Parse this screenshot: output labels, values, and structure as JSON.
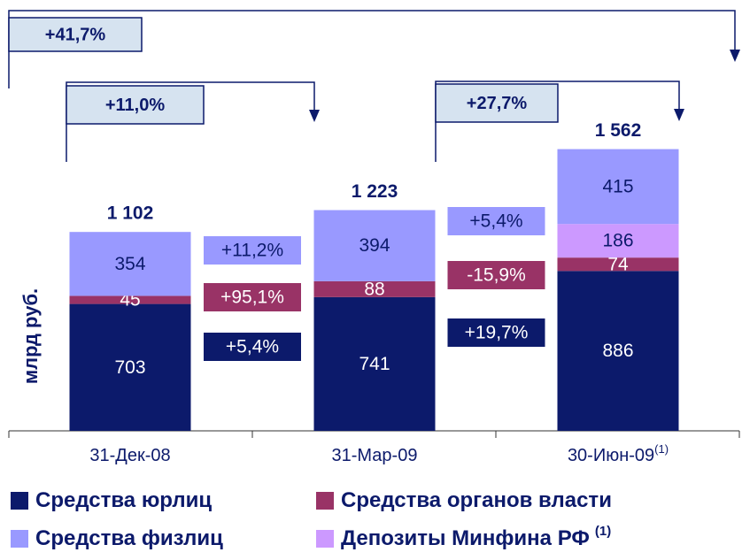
{
  "chart_data": {
    "type": "stacked_bar",
    "y_axis_label": "млрд руб.",
    "categories": [
      "31-Дек-08",
      "31-Мар-09",
      "30-Июн-09"
    ],
    "category_notes": [
      null,
      null,
      "(1)"
    ],
    "ylim": [
      0,
      2000
    ],
    "series": [
      {
        "name": "Средства юрлиц",
        "color": "#0c1a6b",
        "text_color": "#ffffff",
        "values": [
          703,
          741,
          886
        ],
        "changes": [
          5.4,
          19.7
        ],
        "change_labels": [
          "+5,4%",
          "+19,7%"
        ]
      },
      {
        "name": "Средства органов власти",
        "color": "#993366",
        "text_color": "#ffffff",
        "values": [
          45,
          88,
          74
        ],
        "changes": [
          95.1,
          -15.9
        ],
        "change_labels": [
          "+95,1%",
          "-15,9%"
        ]
      },
      {
        "name": "Депозиты Минфина РФ",
        "note": "(1)",
        "color": "#cc99ff",
        "text_color": "#0c1a6b",
        "values": [
          null,
          null,
          186
        ],
        "changes": [
          null,
          null
        ],
        "change_labels": [
          null,
          null
        ]
      },
      {
        "name": "Средства физлиц",
        "color": "#9999ff",
        "text_color": "#0c1a6b",
        "values": [
          354,
          394,
          415
        ],
        "changes": [
          11.2,
          5.4
        ],
        "change_labels": [
          "+11,2%",
          "+5,4%"
        ]
      }
    ],
    "totals": [
      1102,
      1223,
      1562
    ],
    "total_labels": [
      "1 102",
      "1 223",
      "1 562"
    ],
    "brackets": [
      {
        "from": 0,
        "to": 2,
        "value": 41.7,
        "label": "+41,7%"
      },
      {
        "from": 0,
        "to": 1,
        "value": 11.0,
        "label": "+11,0%"
      },
      {
        "from": 1,
        "to": 2,
        "value": 27.7,
        "label": "+27,7%"
      }
    ]
  }
}
